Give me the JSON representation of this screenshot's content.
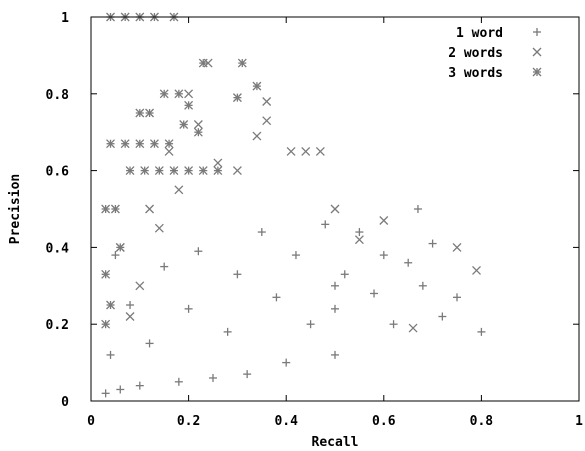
{
  "chart_data": {
    "type": "scatter",
    "title": "",
    "xlabel": "Recall",
    "ylabel": "Precision",
    "xlim": [
      0,
      1
    ],
    "ylim": [
      0,
      1
    ],
    "x_ticks": [
      "0",
      "0.2",
      "0.4",
      "0.6",
      "0.8",
      "1"
    ],
    "y_ticks": [
      "0",
      "0.2",
      "0.4",
      "0.6",
      "0.8",
      "1"
    ],
    "grid": false,
    "legend_position": "top-right",
    "marker_color": "#7a7a7a",
    "series": [
      {
        "name": "1 word",
        "marker": "plus",
        "points": [
          [
            0.8,
            0.18
          ],
          [
            0.75,
            0.27
          ],
          [
            0.72,
            0.22
          ],
          [
            0.7,
            0.41
          ],
          [
            0.68,
            0.3
          ],
          [
            0.67,
            0.5
          ],
          [
            0.65,
            0.36
          ],
          [
            0.62,
            0.2
          ],
          [
            0.6,
            0.38
          ],
          [
            0.58,
            0.28
          ],
          [
            0.55,
            0.44
          ],
          [
            0.52,
            0.33
          ],
          [
            0.5,
            0.12
          ],
          [
            0.5,
            0.3
          ],
          [
            0.5,
            0.24
          ],
          [
            0.48,
            0.46
          ],
          [
            0.45,
            0.2
          ],
          [
            0.42,
            0.38
          ],
          [
            0.4,
            0.1
          ],
          [
            0.38,
            0.27
          ],
          [
            0.35,
            0.44
          ],
          [
            0.32,
            0.07
          ],
          [
            0.3,
            0.33
          ],
          [
            0.28,
            0.18
          ],
          [
            0.25,
            0.06
          ],
          [
            0.22,
            0.39
          ],
          [
            0.2,
            0.24
          ],
          [
            0.18,
            0.05
          ],
          [
            0.15,
            0.35
          ],
          [
            0.12,
            0.15
          ],
          [
            0.1,
            0.04
          ],
          [
            0.08,
            0.25
          ],
          [
            0.06,
            0.03
          ],
          [
            0.05,
            0.38
          ],
          [
            0.04,
            0.12
          ],
          [
            0.03,
            0.02
          ]
        ]
      },
      {
        "name": "2 words",
        "marker": "cross",
        "points": [
          [
            0.79,
            0.34
          ],
          [
            0.75,
            0.4
          ],
          [
            0.66,
            0.19
          ],
          [
            0.6,
            0.47
          ],
          [
            0.55,
            0.42
          ],
          [
            0.5,
            0.5
          ],
          [
            0.47,
            0.65
          ],
          [
            0.44,
            0.65
          ],
          [
            0.41,
            0.65
          ],
          [
            0.36,
            0.73
          ],
          [
            0.36,
            0.78
          ],
          [
            0.34,
            0.69
          ],
          [
            0.3,
            0.6
          ],
          [
            0.26,
            0.62
          ],
          [
            0.24,
            0.88
          ],
          [
            0.22,
            0.72
          ],
          [
            0.2,
            0.8
          ],
          [
            0.18,
            0.55
          ],
          [
            0.16,
            0.65
          ],
          [
            0.14,
            0.45
          ],
          [
            0.12,
            0.5
          ],
          [
            0.1,
            0.3
          ],
          [
            0.08,
            0.22
          ],
          [
            0.06,
            0.4
          ]
        ]
      },
      {
        "name": "3 words",
        "marker": "star",
        "points": [
          [
            0.34,
            0.82
          ],
          [
            0.31,
            0.88
          ],
          [
            0.3,
            0.79
          ],
          [
            0.23,
            0.88
          ],
          [
            0.2,
            0.77
          ],
          [
            0.17,
            1.0
          ],
          [
            0.13,
            1.0
          ],
          [
            0.1,
            1.0
          ],
          [
            0.07,
            1.0
          ],
          [
            0.04,
            1.0
          ],
          [
            0.18,
            0.8
          ],
          [
            0.15,
            0.8
          ],
          [
            0.12,
            0.75
          ],
          [
            0.1,
            0.75
          ],
          [
            0.22,
            0.7
          ],
          [
            0.19,
            0.72
          ],
          [
            0.16,
            0.67
          ],
          [
            0.13,
            0.67
          ],
          [
            0.1,
            0.67
          ],
          [
            0.07,
            0.67
          ],
          [
            0.04,
            0.67
          ],
          [
            0.26,
            0.6
          ],
          [
            0.23,
            0.6
          ],
          [
            0.2,
            0.6
          ],
          [
            0.17,
            0.6
          ],
          [
            0.14,
            0.6
          ],
          [
            0.11,
            0.6
          ],
          [
            0.08,
            0.6
          ],
          [
            0.05,
            0.5
          ],
          [
            0.03,
            0.5
          ],
          [
            0.06,
            0.4
          ],
          [
            0.03,
            0.33
          ],
          [
            0.04,
            0.25
          ],
          [
            0.03,
            0.2
          ]
        ]
      }
    ]
  }
}
